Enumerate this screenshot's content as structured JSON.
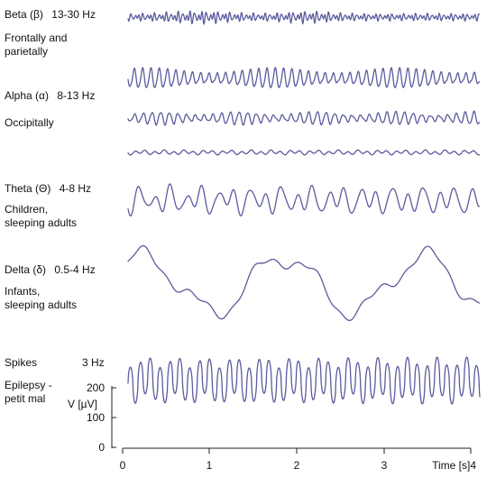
{
  "bands": [
    {
      "name": "Beta (β)",
      "freq": "13-30 Hz",
      "location": "Frontally and\nparietally"
    },
    {
      "name": "Alpha (α)",
      "freq": "8-13 Hz",
      "location": "Occipitally"
    },
    {
      "name": "Theta (Θ)",
      "freq": "4-8 Hz",
      "location": "Children,\nsleeping adults"
    },
    {
      "name": "Delta (δ)",
      "freq": "0.5-4 Hz",
      "location": "Infants,\nsleeping adults"
    },
    {
      "name": "Spikes",
      "freq": "3 Hz",
      "location": "Epilepsy -\npetit mal"
    }
  ],
  "y_axis": {
    "label": "V [µV]",
    "ticks": [
      "200",
      "100",
      "0"
    ]
  },
  "x_axis": {
    "ticks": [
      "0",
      "1",
      "2",
      "3"
    ],
    "label": "Time [s]4"
  },
  "colors": {
    "trace": "#5b5b9e",
    "axis": "#222222"
  }
}
